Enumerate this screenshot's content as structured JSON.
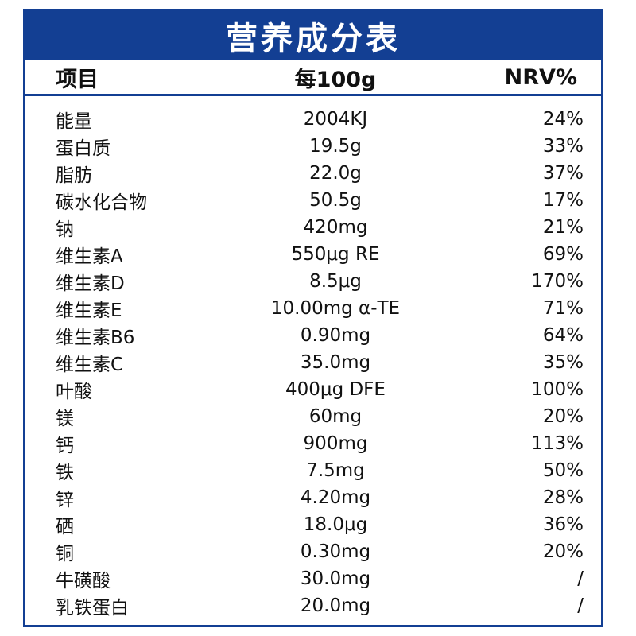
{
  "title": "营养成分表",
  "headers": {
    "item": "项目",
    "per100g": "每100g",
    "nrv": "NRV%"
  },
  "rows": [
    {
      "item": "能量",
      "amount": "2004KJ",
      "nrv": "24%"
    },
    {
      "item": "蛋白质",
      "amount": "19.5g",
      "nrv": "33%"
    },
    {
      "item": "脂肪",
      "amount": "22.0g",
      "nrv": "37%"
    },
    {
      "item": "碳水化合物",
      "amount": "50.5g",
      "nrv": "17%"
    },
    {
      "item": "钠",
      "amount": "420mg",
      "nrv": "21%"
    },
    {
      "item": "维生素A",
      "amount": "550μg RE",
      "nrv": "69%"
    },
    {
      "item": "维生素D",
      "amount": "8.5μg",
      "nrv": "170%"
    },
    {
      "item": "维生素E",
      "amount": "10.00mg α-TE",
      "nrv": "71%"
    },
    {
      "item": "维生素B6",
      "amount": "0.90mg",
      "nrv": "64%"
    },
    {
      "item": "维生素C",
      "amount": "35.0mg",
      "nrv": "35%"
    },
    {
      "item": "叶酸",
      "amount": "400μg DFE",
      "nrv": "100%"
    },
    {
      "item": "镁",
      "amount": "60mg",
      "nrv": "20%"
    },
    {
      "item": "钙",
      "amount": "900mg",
      "nrv": "113%"
    },
    {
      "item": "铁",
      "amount": "7.5mg",
      "nrv": "50%"
    },
    {
      "item": "锌",
      "amount": "4.20mg",
      "nrv": "28%"
    },
    {
      "item": "硒",
      "amount": "18.0μg",
      "nrv": "36%"
    },
    {
      "item": "铜",
      "amount": "0.30mg",
      "nrv": "20%"
    },
    {
      "item": "牛磺酸",
      "amount": "30.0mg",
      "nrv": "/"
    },
    {
      "item": "乳铁蛋白",
      "amount": "20.0mg",
      "nrv": "/"
    }
  ],
  "colors": {
    "accent": "#133f93"
  }
}
